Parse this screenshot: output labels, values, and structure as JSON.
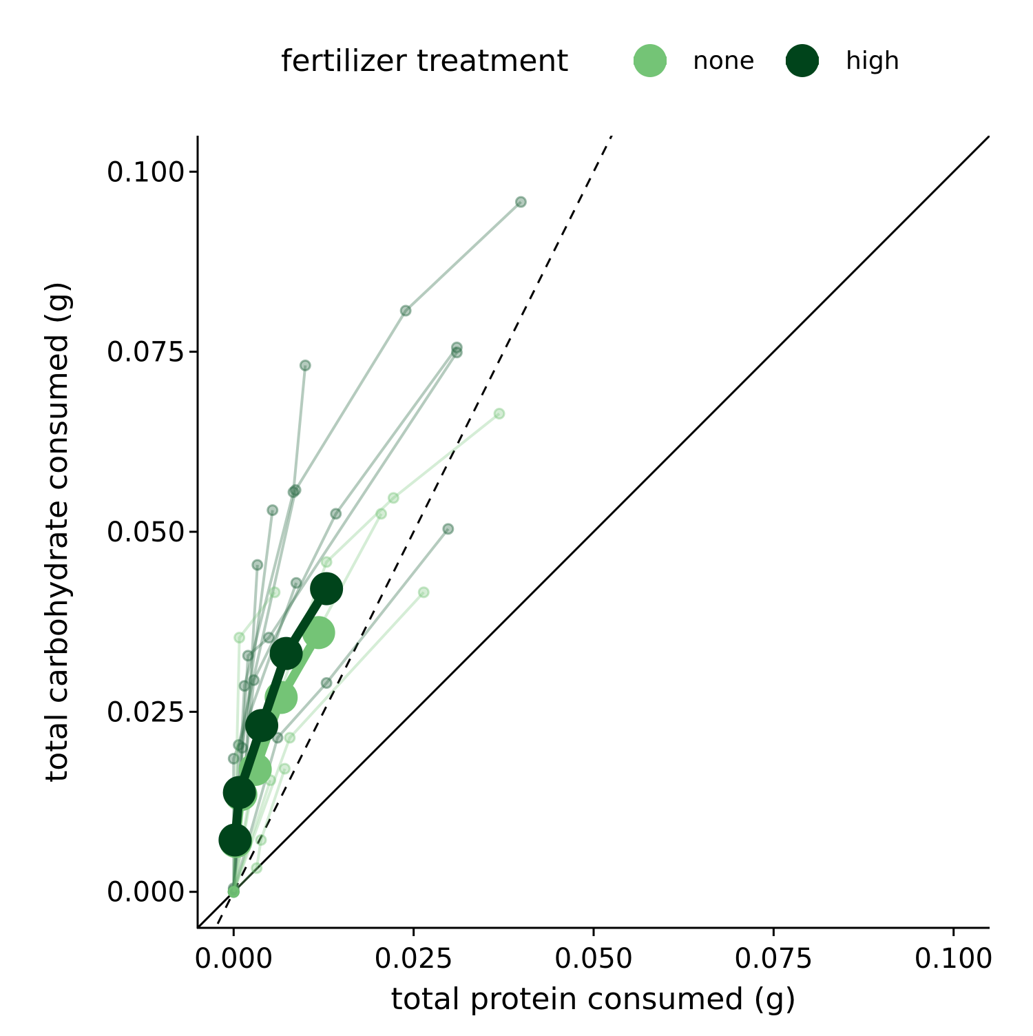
{
  "chart_data": {
    "type": "scatter",
    "xlabel": "total protein consumed  (g)",
    "ylabel": "total carbohydrate consumed (g)",
    "xlim": [
      -0.005,
      0.105
    ],
    "ylim": [
      -0.005,
      0.105
    ],
    "xticks": [
      0,
      0.025,
      0.05,
      0.075,
      0.1
    ],
    "yticks": [
      0,
      0.025,
      0.05,
      0.075,
      0.1
    ],
    "xtick_labels": [
      "0.000",
      "0.025",
      "0.050",
      "0.075",
      "0.100"
    ],
    "ytick_labels": [
      "0.000",
      "0.025",
      "0.050",
      "0.075",
      "0.100"
    ],
    "grid": false,
    "reference_lines": [
      {
        "name": "1:1",
        "slope": 1,
        "style": "solid"
      },
      {
        "name": "2:1",
        "slope": 2,
        "style": "dashed"
      }
    ],
    "legend": {
      "title": "fertilizer treatment",
      "placement": "top",
      "entries": [
        {
          "label": "none",
          "color": "#74c476"
        },
        {
          "label": "high",
          "color": "#00441b"
        }
      ]
    },
    "individual_series": [
      {
        "group": "high",
        "points": [
          [
            0,
            0
          ],
          [
            0.0007,
            0.0204
          ],
          [
            0.0086,
            0.0558
          ],
          [
            0.0239,
            0.0807
          ],
          [
            0.0399,
            0.0958
          ]
        ]
      },
      {
        "group": "high",
        "points": [
          [
            0,
            0
          ],
          [
            0.0015,
            0.0286
          ],
          [
            0.0083,
            0.0555
          ],
          [
            0.00995,
            0.0731
          ]
        ]
      },
      {
        "group": "high",
        "points": [
          [
            0,
            0.0005
          ],
          [
            0.0028,
            0.0294
          ],
          [
            0.0142,
            0.0525
          ],
          [
            0.031,
            0.0756
          ]
        ]
      },
      {
        "group": "high",
        "points": [
          [
            0,
            0
          ],
          [
            0.002,
            0.0328
          ],
          [
            0.0049,
            0.0353
          ],
          [
            0.031,
            0.0749
          ]
        ]
      },
      {
        "group": "high",
        "points": [
          [
            0,
            0.0002
          ],
          [
            0.0012,
            0.02
          ],
          [
            0.0054,
            0.053
          ]
        ]
      },
      {
        "group": "high",
        "points": [
          [
            0,
            0
          ],
          [
            0.0015,
            0.015
          ],
          [
            0.0033,
            0.0454
          ]
        ]
      },
      {
        "group": "high",
        "points": [
          [
            0,
            0
          ],
          [
            0.0061,
            0.0214
          ],
          [
            0.0129,
            0.029
          ],
          [
            0.0298,
            0.0504
          ]
        ]
      },
      {
        "group": "high",
        "points": [
          [
            0,
            0
          ],
          [
            0,
            0.0185
          ],
          [
            0.0087,
            0.0429
          ]
        ]
      },
      {
        "group": "none",
        "points": [
          [
            0,
            0
          ],
          [
            0.003,
            0.018
          ],
          [
            0.0129,
            0.0458
          ],
          [
            0.0222,
            0.0547
          ],
          [
            0.0369,
            0.0664
          ]
        ]
      },
      {
        "group": "none",
        "points": [
          [
            0,
            0
          ],
          [
            0.004,
            0.022
          ],
          [
            0.0205,
            0.0525
          ]
        ]
      },
      {
        "group": "none",
        "points": [
          [
            0,
            0
          ],
          [
            0.0078,
            0.0214
          ],
          [
            0.0264,
            0.0416
          ]
        ]
      },
      {
        "group": "none",
        "points": [
          [
            0,
            0
          ],
          [
            0.0008,
            0.0353
          ],
          [
            0.0057,
            0.0416
          ]
        ]
      },
      {
        "group": "none",
        "points": [
          [
            0,
            0
          ],
          [
            0.0032,
            0.0033
          ],
          [
            0.0038,
            0.0072
          ],
          [
            0.0071,
            0.0171
          ]
        ]
      },
      {
        "group": "none",
        "points": [
          [
            0,
            0
          ],
          [
            0.0051,
            0.0155
          ]
        ]
      }
    ],
    "mean_series": [
      {
        "group": "none",
        "points": [
          [
            0.0003,
            0.007
          ],
          [
            0.001,
            0.0135
          ],
          [
            0.003,
            0.017
          ],
          [
            0.0066,
            0.027
          ],
          [
            0.0118,
            0.036
          ]
        ]
      },
      {
        "group": "high",
        "points": [
          [
            0.0002,
            0.0072
          ],
          [
            0.0008,
            0.0138
          ],
          [
            0.0039,
            0.0231
          ],
          [
            0.0073,
            0.0331
          ],
          [
            0.0129,
            0.0421
          ]
        ]
      }
    ]
  }
}
